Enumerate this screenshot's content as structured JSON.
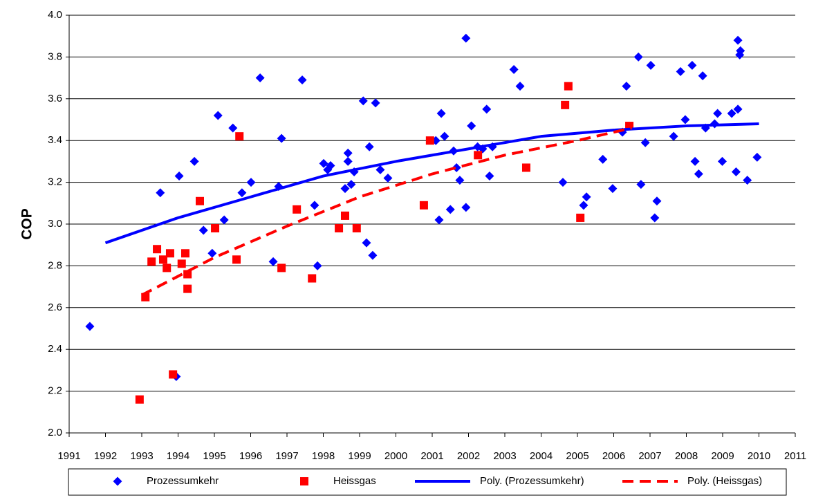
{
  "chart_data": {
    "type": "scatter",
    "ylabel": "COP",
    "xlim": [
      1991,
      2011
    ],
    "xticks": [
      1991,
      1992,
      1993,
      1994,
      1995,
      1996,
      1997,
      1998,
      1999,
      2000,
      2001,
      2002,
      2003,
      2004,
      2005,
      2006,
      2007,
      2008,
      2009,
      2010,
      2011
    ],
    "ylim": [
      2,
      4
    ],
    "yticks": [
      {
        "value": 2,
        "label": "2.0"
      },
      {
        "value": 2.2,
        "label": "2.2"
      },
      {
        "value": 2.4,
        "label": "2.4"
      },
      {
        "value": 2.6,
        "label": "2.6"
      },
      {
        "value": 2.8,
        "label": "2.8"
      },
      {
        "value": 3,
        "label": "3.0"
      },
      {
        "value": 3.2,
        "label": "3.2"
      },
      {
        "value": 3.4,
        "label": "3.4"
      },
      {
        "value": 3.6,
        "label": "3.6"
      },
      {
        "value": 3.8,
        "label": "3.8"
      },
      {
        "value": 4,
        "label": "4.0"
      }
    ],
    "grid": true,
    "legend": "bottom",
    "series": [
      {
        "name": "Prozessumkehr",
        "color": "#0000ff",
        "type": "scatter",
        "marker": "diamond",
        "x": [
          1991.57,
          1993.51,
          1994.03,
          1994.45,
          1993.95,
          1994.7,
          1994.94,
          1995.1,
          1995.27,
          1995.51,
          1995.76,
          1996.01,
          1996.26,
          1996.62,
          1996.77,
          1996.85,
          1997.42,
          1997.76,
          1997.84,
          1998.01,
          1998.12,
          1998.2,
          1998.6,
          1998.68,
          1998.68,
          1998.77,
          1998.85,
          1999.1,
          1999.19,
          1999.27,
          1999.36,
          1999.44,
          1999.57,
          1999.78,
          2001.1,
          2001.19,
          2001.25,
          2001.34,
          2001.5,
          2001.59,
          2001.67,
          2001.76,
          2001.93,
          2001.93,
          2002.08,
          2002.25,
          2002.39,
          2002.5,
          2002.58,
          2002.66,
          2003.25,
          2003.42,
          2004.6,
          2005.17,
          2005.25,
          2005.7,
          2005.97,
          2006.24,
          2006.35,
          2006.68,
          2006.75,
          2006.87,
          2007.02,
          2007.13,
          2007.19,
          2007.65,
          2007.84,
          2007.97,
          2008.16,
          2008.24,
          2008.34,
          2008.45,
          2008.53,
          2008.78,
          2008.86,
          2008.99,
          2009.25,
          2009.37,
          2009.42,
          2009.42,
          2009.49,
          2009.47,
          2009.68,
          2009.95
        ],
        "values": [
          2.51,
          3.15,
          3.23,
          3.3,
          2.27,
          2.97,
          2.86,
          3.52,
          3.02,
          3.46,
          3.15,
          3.2,
          3.7,
          2.82,
          3.18,
          3.41,
          3.69,
          3.09,
          2.8,
          3.29,
          3.26,
          3.28,
          3.17,
          3.34,
          3.3,
          3.19,
          3.25,
          3.59,
          2.91,
          3.37,
          2.85,
          3.58,
          3.26,
          3.22,
          3.4,
          3.02,
          3.53,
          3.42,
          3.07,
          3.35,
          3.27,
          3.21,
          3.89,
          3.08,
          3.47,
          3.37,
          3.36,
          3.55,
          3.23,
          3.37,
          3.74,
          3.66,
          3.2,
          3.09,
          3.13,
          3.31,
          3.17,
          3.44,
          3.66,
          3.8,
          3.19,
          3.39,
          3.76,
          3.03,
          3.11,
          3.42,
          3.73,
          3.5,
          3.76,
          3.3,
          3.24,
          3.71,
          3.46,
          3.48,
          3.53,
          3.3,
          3.53,
          3.25,
          3.88,
          3.55,
          3.83,
          3.81,
          3.21,
          3.32
        ]
      },
      {
        "name": "Heissgas",
        "color": "#ff0000",
        "type": "scatter",
        "marker": "square",
        "x": [
          1992.94,
          1993.1,
          1993.27,
          1993.42,
          1993.59,
          1993.69,
          1993.78,
          1993.86,
          1994.1,
          1994.2,
          1994.26,
          1994.26,
          1994.6,
          1995.02,
          1995.61,
          1995.69,
          1996.85,
          1997.27,
          1997.69,
          1998.43,
          1998.6,
          1998.92,
          2000.77,
          2000.94,
          2002.26,
          2003.59,
          2004.66,
          2004.75,
          2005.08,
          2006.43
        ],
        "values": [
          2.16,
          2.65,
          2.82,
          2.88,
          2.83,
          2.79,
          2.86,
          2.28,
          2.81,
          2.86,
          2.76,
          2.69,
          3.11,
          2.98,
          2.83,
          3.42,
          2.79,
          3.07,
          2.74,
          2.98,
          3.04,
          2.98,
          3.09,
          3.4,
          3.33,
          3.27,
          3.57,
          3.66,
          3.03,
          3.47
        ]
      },
      {
        "name": "Poly. (Prozessumkehr)",
        "color": "#0000ff",
        "type": "line",
        "dash": false,
        "x": [
          1992,
          1994,
          1996,
          1998,
          2000,
          2002,
          2004,
          2006,
          2008,
          2010
        ],
        "values": [
          2.91,
          3.03,
          3.13,
          3.23,
          3.3,
          3.36,
          3.42,
          3.45,
          3.47,
          3.48
        ]
      },
      {
        "name": "Poly. (Heissgas)",
        "color": "#ff0000",
        "type": "line",
        "dash": true,
        "x": [
          1993,
          1995,
          1997,
          1999,
          2001,
          2003,
          2005,
          2006.5
        ],
        "values": [
          2.66,
          2.84,
          2.99,
          3.13,
          3.24,
          3.33,
          3.4,
          3.46
        ]
      }
    ]
  }
}
